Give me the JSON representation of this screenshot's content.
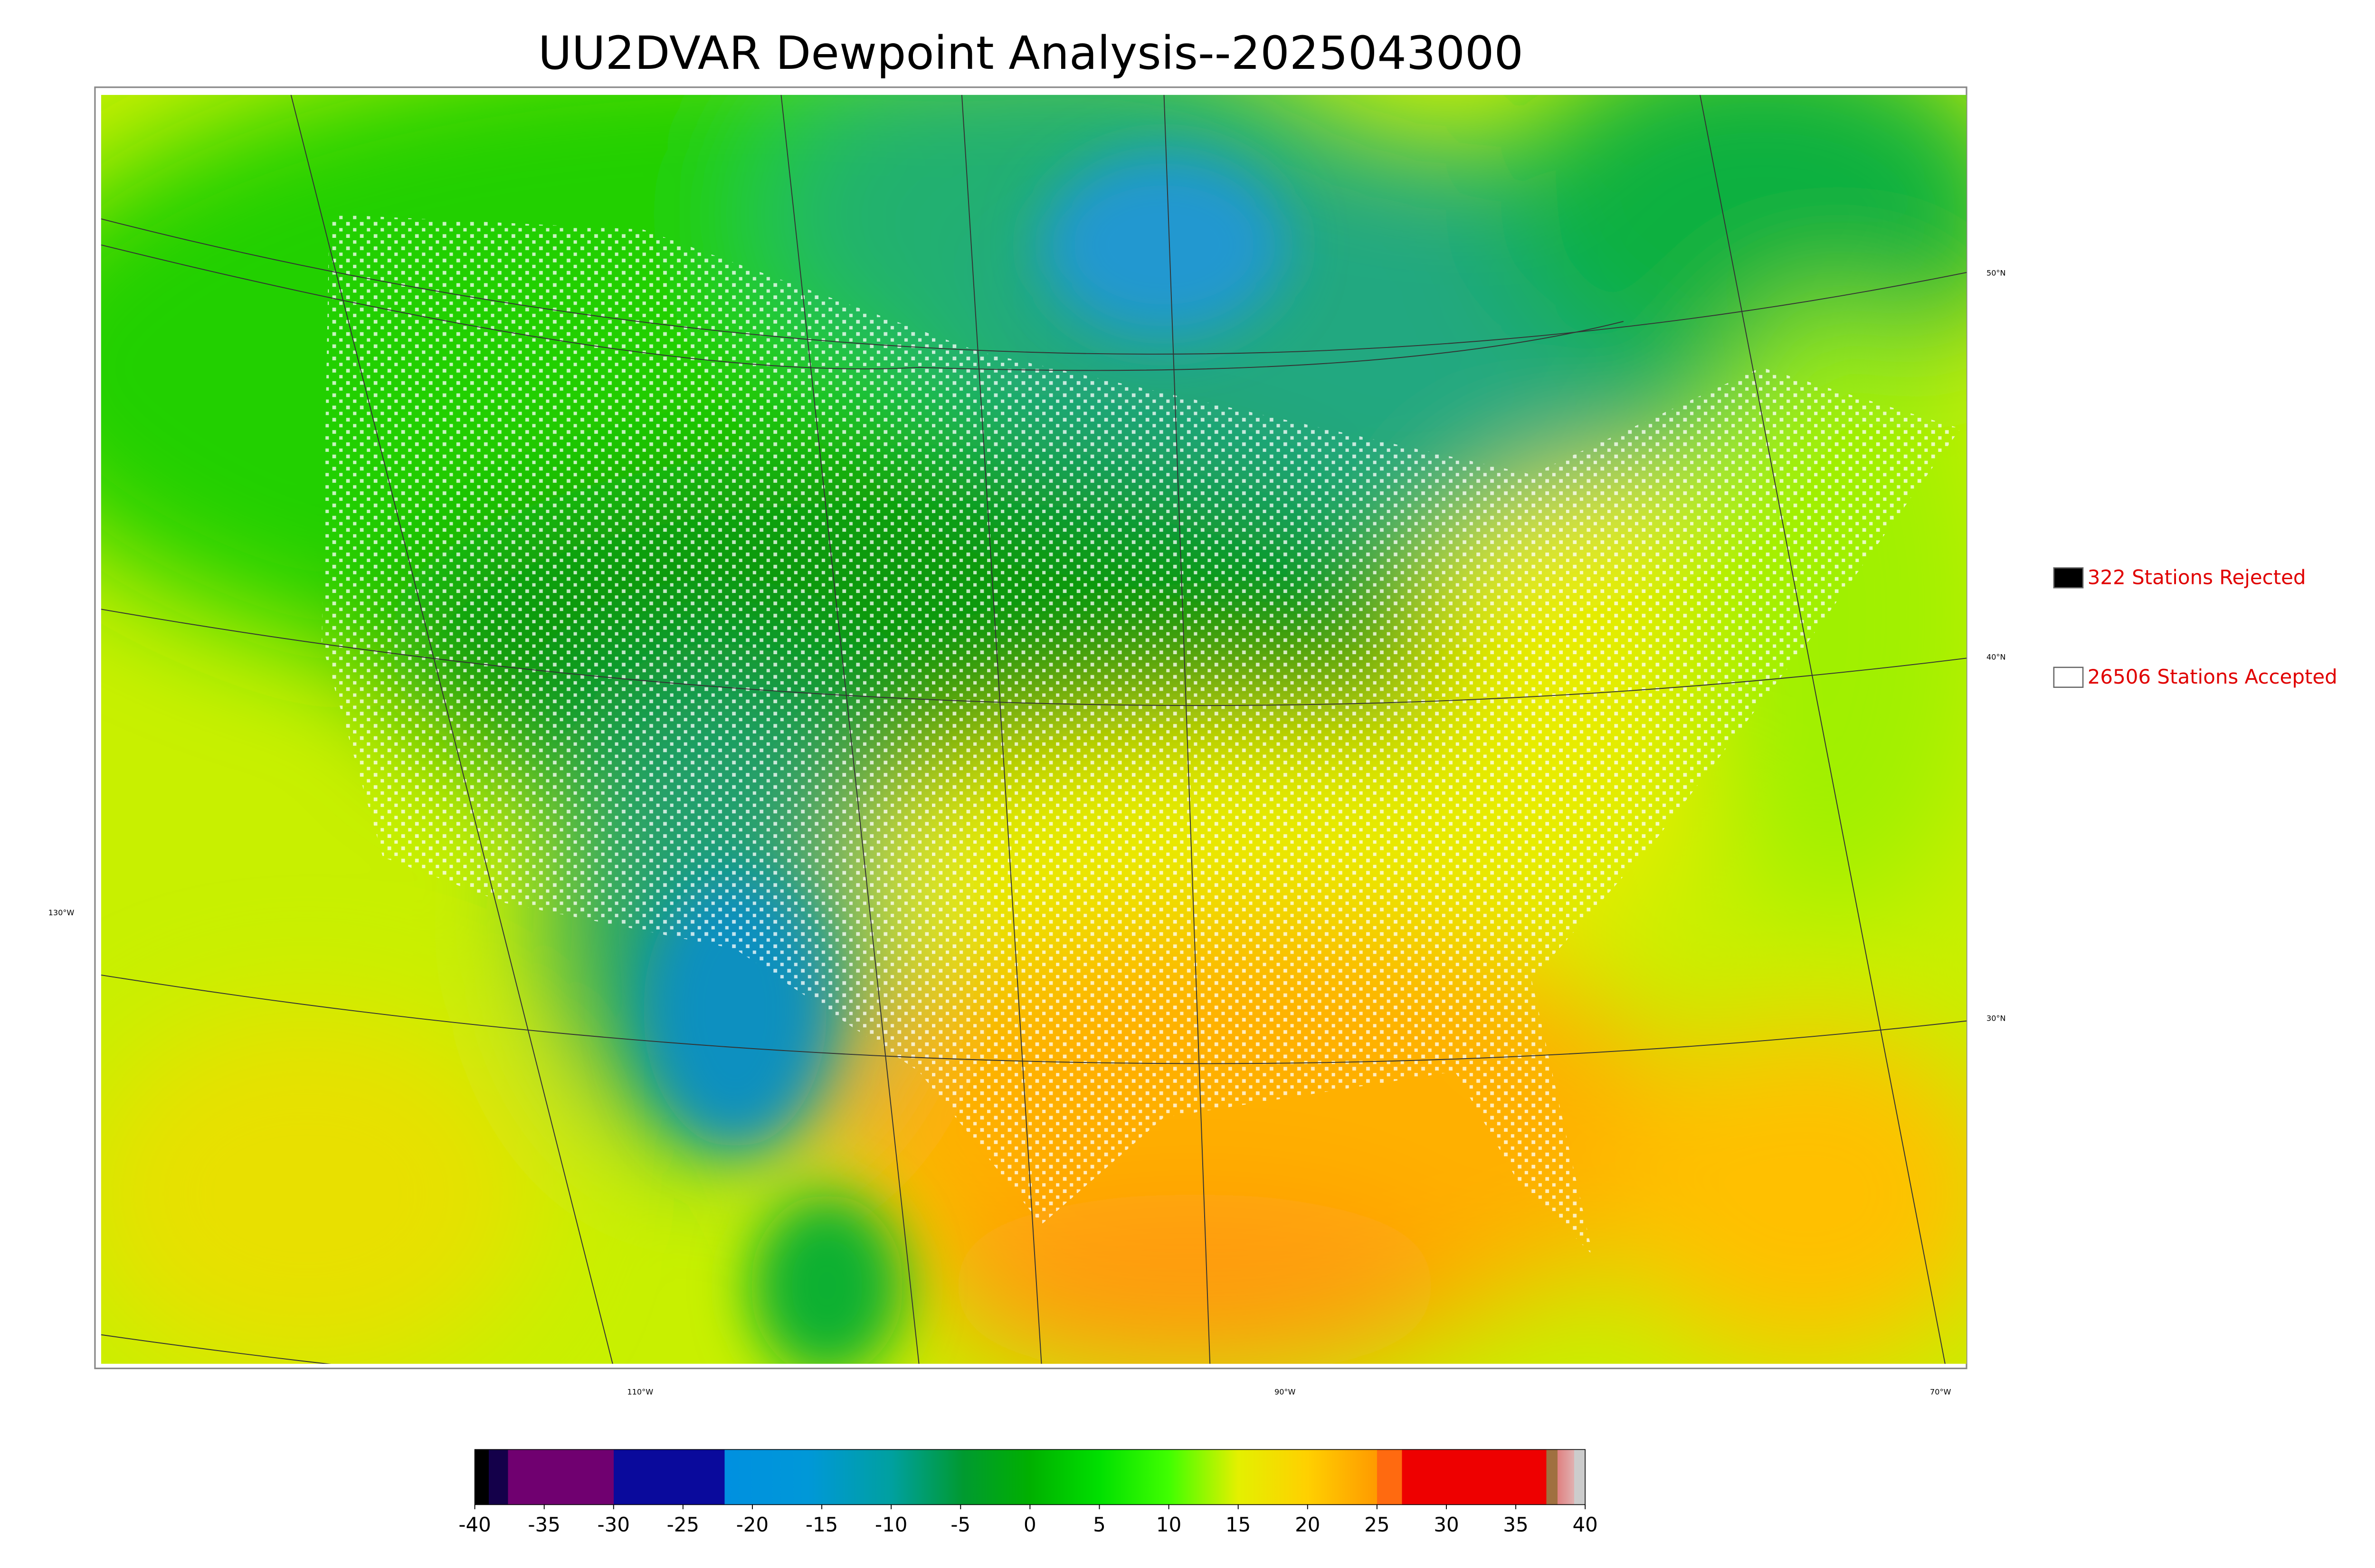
{
  "title": "UU2DVAR Dewpoint Analysis--2025043000",
  "map": {
    "lat_labels": [
      "50°N",
      "40°N",
      "30°N"
    ],
    "lon_labels": [
      "130°W",
      "110°W",
      "90°W",
      "70°W"
    ]
  },
  "legend": [
    {
      "label": "322 Stations Rejected",
      "color": "#000000"
    },
    {
      "label": "26506 Stations Accepted",
      "color": "#ffffff"
    }
  ],
  "colorbar": {
    "ticks": [
      -40,
      -35,
      -30,
      -25,
      -20,
      -15,
      -10,
      -5,
      0,
      5,
      10,
      15,
      20,
      25,
      30,
      35,
      40
    ]
  }
}
